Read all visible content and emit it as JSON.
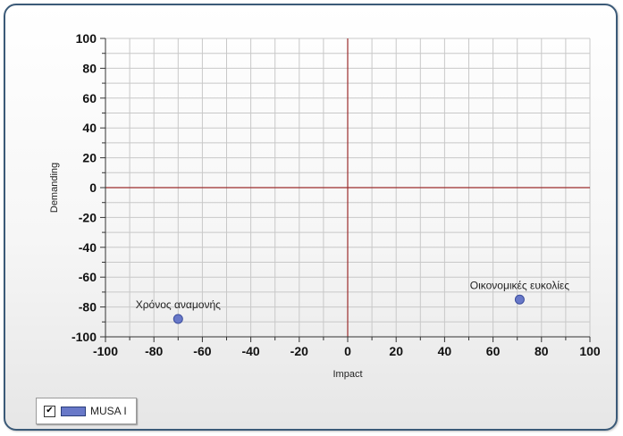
{
  "colors": {
    "series": "#6878c8",
    "series_stroke": "#3d4f9e",
    "grid": "#c8c8c8",
    "zero_line": "#9b2c2c",
    "axis": "#333333"
  },
  "legend": {
    "checked": true,
    "check_glyph": "✔",
    "label": "MUSA I"
  },
  "chart_data": {
    "type": "scatter",
    "title": "",
    "xlabel": "Impact",
    "ylabel": "Demanding",
    "xlim": [
      -100,
      100
    ],
    "ylim": [
      -100,
      100
    ],
    "xticks": [
      -100,
      -80,
      -60,
      -40,
      -20,
      0,
      20,
      40,
      60,
      80,
      100
    ],
    "yticks": [
      100,
      80,
      60,
      40,
      20,
      0,
      -20,
      -40,
      -60,
      -80,
      -100
    ],
    "grid": true,
    "minor_step": 10,
    "legend_position": "bottom-left",
    "series": [
      {
        "name": "MUSA I",
        "points": [
          {
            "x": -70,
            "y": -88,
            "label": "Χρόνος αναμονής"
          },
          {
            "x": 71,
            "y": -75,
            "label": "Οικονομικές ευκολίες"
          }
        ]
      }
    ]
  }
}
